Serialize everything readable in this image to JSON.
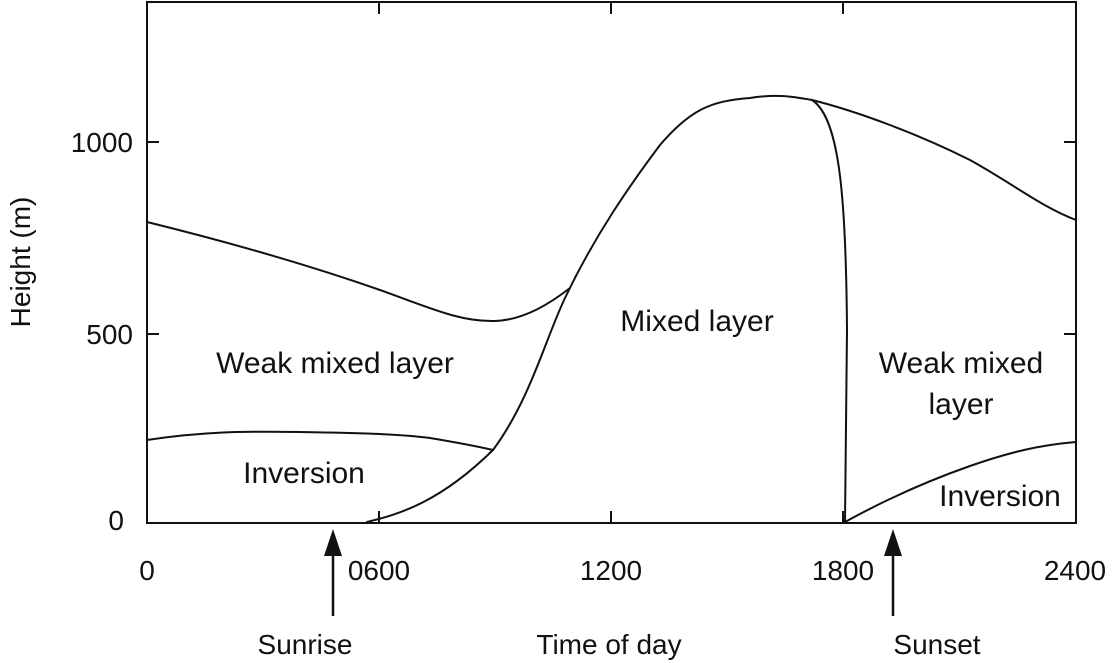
{
  "diagram": {
    "y_axis": {
      "label": "Height (m)",
      "ticks": [
        "0",
        "500",
        "1000"
      ]
    },
    "x_axis": {
      "label": "Time of day",
      "ticks": [
        "0",
        "0600",
        "1200",
        "1800",
        "2400"
      ]
    },
    "regions": {
      "weak_mixed_morning": "Weak mixed layer",
      "inversion_morning": "Inversion",
      "mixed_layer": "Mixed layer",
      "weak_mixed_evening_line1": "Weak mixed",
      "weak_mixed_evening_line2": "layer",
      "inversion_evening": "Inversion"
    },
    "markers": {
      "sunrise": "Sunrise",
      "sunset": "Sunset"
    }
  }
}
